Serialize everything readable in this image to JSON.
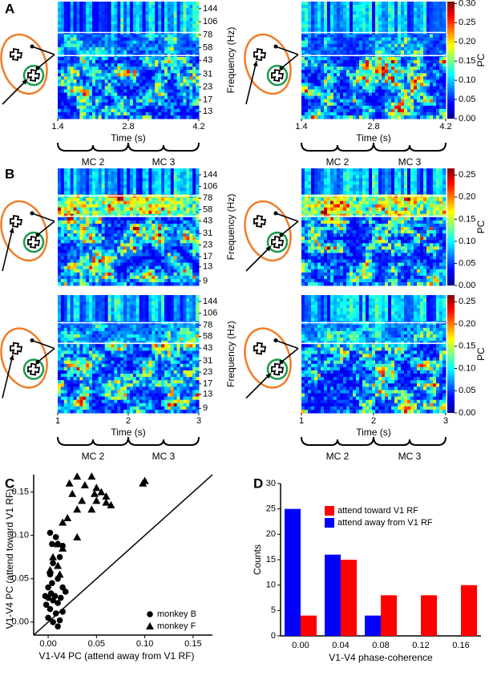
{
  "panel_labels": [
    "A",
    "B",
    "C",
    "D"
  ],
  "spectrograms": {
    "ylabel": "Frequency (Hz)",
    "xlabel": "Time (s)",
    "epochs": [
      "MC 2",
      "MC 3"
    ],
    "colorbar_label": "PC",
    "yscale": "log",
    "rows": [
      {
        "yticks": [
          13,
          17,
          23,
          31,
          43,
          58,
          78,
          106,
          144
        ],
        "ylim": [
          11,
          170
        ],
        "xticks": [
          1.4,
          2.8,
          4.2
        ],
        "xlim": [
          1.4,
          4.2
        ],
        "cticks": [
          {
            "value": 0,
            "label": "0.00"
          },
          0.05,
          {
            "value": 0.1,
            "label": "0.10"
          },
          0.15,
          {
            "value": 0.2,
            "label": "0.20"
          },
          0.25,
          {
            "value": 0.3,
            "label": "0.30"
          }
        ],
        "clim": [
          0,
          0.305
        ]
      },
      {
        "yticks": [
          9,
          13,
          17,
          23,
          31,
          43,
          58,
          78,
          106,
          144
        ],
        "ylim": [
          8,
          170
        ],
        "cticks": [
          {
            "value": 0,
            "label": "0.00"
          },
          0.05,
          {
            "value": 0.1,
            "label": "0.10"
          },
          0.15,
          {
            "value": 0.2,
            "label": "0.20"
          },
          0.25
        ],
        "clim": [
          0,
          0.265
        ]
      },
      {
        "yticks": [
          9,
          13,
          17,
          23,
          31,
          43,
          58,
          78,
          106,
          144
        ],
        "ylim": [
          8,
          170
        ],
        "xticks": [
          1,
          2,
          3
        ],
        "xlim": [
          1,
          3
        ],
        "cticks": [
          {
            "value": 0,
            "label": "0.00"
          },
          0.05,
          {
            "value": 0.1,
            "label": "0.10"
          },
          0.15,
          {
            "value": 0.2,
            "label": "0.20"
          },
          0.25
        ],
        "clim": [
          0,
          0.265
        ]
      }
    ]
  },
  "chart_data": [
    {
      "type": "scatter",
      "xlabel": "V1-V4 PC (attend away from V1 RF)",
      "ylabel": "V1-V4 PC (attend toward V1 RF)",
      "xlim": [
        -0.015,
        0.17
      ],
      "ylim": [
        -0.015,
        0.17
      ],
      "xticks": [
        {
          "value": 0,
          "label": "0.00"
        },
        0.05,
        {
          "value": 0.1,
          "label": "0.10"
        },
        0.15
      ],
      "yticks": [
        {
          "value": 0,
          "label": "0.00"
        },
        0.05,
        {
          "value": 0.1,
          "label": "0.10"
        },
        0.15
      ],
      "legend": "lower right",
      "series": [
        {
          "name": "monkey B",
          "marker": "circle",
          "color": "#000000",
          "x": [
            0.002,
            0.008,
            0.004,
            0.01,
            0.015,
            0.012,
            0.005,
            0.002,
            0.01,
            0.015,
            0.018,
            0.0,
            0.003,
            0.007,
            0.0,
            0.005,
            0.01,
            0.013,
            -0.002,
            0.002,
            0.008,
            0.0,
            0.005,
            0.012,
            0.01,
            0.015,
            -0.003,
            0.004
          ],
          "y": [
            0.103,
            0.098,
            0.09,
            0.09,
            0.088,
            0.075,
            0.068,
            0.055,
            0.05,
            0.04,
            0.035,
            0.04,
            0.033,
            0.03,
            0.028,
            0.025,
            0.022,
            0.028,
            0.02,
            0.015,
            0.01,
            0.005,
            0.0,
            0.002,
            -0.005,
            0.012,
            0.03,
            0.045
          ]
        },
        {
          "name": "monkey F",
          "marker": "triangle",
          "color": "#000000",
          "x": [
            0.03,
            0.045,
            0.022,
            0.038,
            0.05,
            0.025,
            0.048,
            0.055,
            0.06,
            0.035,
            0.05,
            0.06,
            0.03,
            0.045,
            0.065,
            0.1,
            0.098,
            0.02,
            0.015,
            0.03,
            0.01,
            0.015,
            0.005,
            0.01,
            0.002,
            0.012
          ],
          "y": [
            0.168,
            0.168,
            0.16,
            0.158,
            0.155,
            0.148,
            0.148,
            0.15,
            0.145,
            0.14,
            0.14,
            0.138,
            0.13,
            0.13,
            0.135,
            0.163,
            0.16,
            0.12,
            0.115,
            0.098,
            0.09,
            0.085,
            0.075,
            0.065,
            0.06,
            0.055
          ]
        }
      ]
    },
    {
      "type": "bar",
      "xlabel": "V1-V4 phase-coherence",
      "ylabel": "Counts",
      "categories": [
        "0.00",
        "0.04",
        "0.08",
        "0.12",
        "0.16"
      ],
      "ylim": [
        0,
        30
      ],
      "yticks": [
        0,
        5,
        10,
        15,
        20,
        25,
        30
      ],
      "legend": "upper right",
      "series": [
        {
          "name": "attend toward V1 RF",
          "color": "#ff0000",
          "values": [
            4,
            15,
            8,
            8,
            10
          ]
        },
        {
          "name": "attend away from V1 RF",
          "color": "#0000ff",
          "values": [
            25,
            16,
            4,
            0,
            0
          ]
        }
      ]
    }
  ]
}
